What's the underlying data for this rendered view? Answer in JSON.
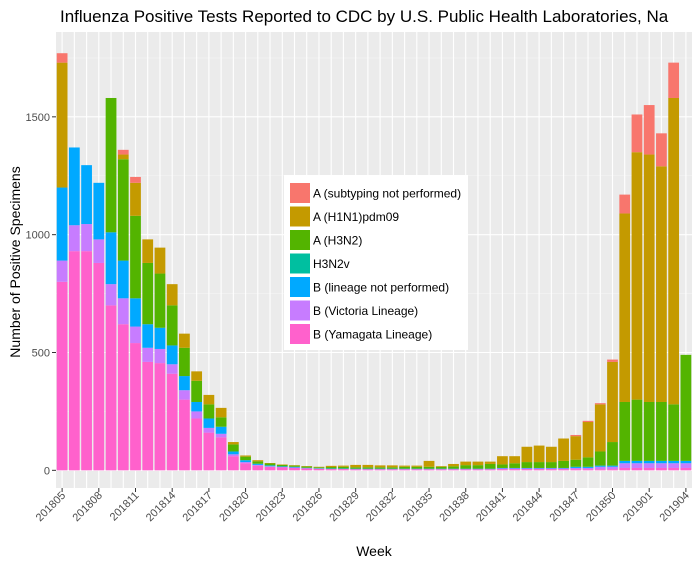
{
  "chart_data": {
    "type": "bar",
    "stacked": true,
    "title": "Influenza Positive Tests Reported to CDC by U.S. Public Health Laboratories, Na",
    "xlabel": "Week",
    "ylabel": "Number of Positive Specimens",
    "ylim": [
      -75,
      1860
    ],
    "y_ticks": [
      0,
      500,
      1000,
      1500
    ],
    "grid": true,
    "legend_position": "center",
    "categories": [
      "201805",
      "201806",
      "201807",
      "201808",
      "201809",
      "201810",
      "201811",
      "201812",
      "201813",
      "201814",
      "201815",
      "201816",
      "201817",
      "201818",
      "201819",
      "201820",
      "201821",
      "201822",
      "201823",
      "201824",
      "201825",
      "201826",
      "201827",
      "201828",
      "201829",
      "201830",
      "201831",
      "201832",
      "201833",
      "201834",
      "201835",
      "201836",
      "201837",
      "201838",
      "201839",
      "201840",
      "201841",
      "201842",
      "201843",
      "201844",
      "201845",
      "201846",
      "201847",
      "201848",
      "201849",
      "201850",
      "201851",
      "201852",
      "201901",
      "201902",
      "201903",
      "201904"
    ],
    "x_tick_labels": [
      "201805",
      "201808",
      "201811",
      "201814",
      "201817",
      "201820",
      "201823",
      "201826",
      "201829",
      "201832",
      "201835",
      "201838",
      "201841",
      "201844",
      "201847",
      "201850",
      "201901",
      "201904"
    ],
    "series": [
      {
        "name": "B (Yamagata Lineage)",
        "color": "#FF61CC",
        "values": [
          800,
          930,
          930,
          880,
          700,
          620,
          540,
          460,
          455,
          410,
          300,
          220,
          160,
          140,
          60,
          30,
          20,
          15,
          12,
          10,
          8,
          6,
          5,
          5,
          4,
          4,
          4,
          4,
          4,
          4,
          4,
          4,
          4,
          4,
          4,
          4,
          5,
          5,
          5,
          5,
          5,
          5,
          5,
          5,
          5,
          5,
          10,
          10,
          10,
          10,
          10,
          10
        ]
      },
      {
        "name": "B (Victoria Lineage)",
        "color": "#C77CFF",
        "values": [
          90,
          110,
          115,
          100,
          90,
          110,
          70,
          60,
          60,
          40,
          40,
          30,
          20,
          15,
          8,
          5,
          3,
          2,
          2,
          2,
          1,
          1,
          1,
          1,
          1,
          1,
          1,
          1,
          1,
          1,
          1,
          1,
          1,
          1,
          1,
          1,
          3,
          3,
          3,
          3,
          3,
          3,
          5,
          5,
          10,
          10,
          20,
          20,
          20,
          20,
          20,
          20
        ]
      },
      {
        "name": "B (lineage not performed)",
        "color": "#00A9FF",
        "values": [
          310,
          330,
          250,
          240,
          220,
          160,
          120,
          100,
          90,
          80,
          60,
          40,
          40,
          30,
          12,
          8,
          5,
          4,
          3,
          3,
          2,
          2,
          2,
          2,
          2,
          2,
          2,
          2,
          2,
          2,
          2,
          2,
          2,
          2,
          2,
          2,
          2,
          2,
          2,
          2,
          2,
          2,
          5,
          5,
          5,
          5,
          10,
          10,
          10,
          10,
          10,
          10
        ]
      },
      {
        "name": "H3N2v",
        "color": "#00BFA0",
        "values": [
          0,
          0,
          0,
          0,
          0,
          0,
          0,
          0,
          0,
          0,
          0,
          0,
          0,
          0,
          0,
          0,
          0,
          0,
          0,
          0,
          0,
          0,
          0,
          0,
          0,
          0,
          0,
          0,
          0,
          0,
          0,
          0,
          0,
          0,
          0,
          0,
          0,
          0,
          0,
          0,
          0,
          0,
          0,
          0,
          0,
          0,
          0,
          0,
          0,
          0,
          0,
          0
        ]
      },
      {
        "name": "A (H3N2)",
        "color": "#53B400",
        "values": [
          0,
          0,
          0,
          0,
          570,
          430,
          350,
          260,
          230,
          170,
          120,
          90,
          60,
          40,
          30,
          15,
          10,
          8,
          6,
          5,
          5,
          4,
          6,
          7,
          6,
          6,
          6,
          6,
          8,
          8,
          8,
          8,
          10,
          15,
          15,
          20,
          15,
          20,
          25,
          25,
          25,
          30,
          30,
          40,
          60,
          100,
          250,
          260,
          250,
          250,
          240,
          450
        ]
      },
      {
        "name": "A (H1N1)pdm09",
        "color": "#C49A00",
        "values": [
          530,
          0,
          0,
          0,
          0,
          20,
          140,
          100,
          110,
          90,
          60,
          40,
          40,
          40,
          10,
          5,
          5,
          2,
          2,
          2,
          2,
          2,
          5,
          5,
          10,
          10,
          8,
          8,
          5,
          5,
          25,
          3,
          10,
          15,
          15,
          10,
          35,
          30,
          65,
          70,
          65,
          95,
          100,
          150,
          200,
          340,
          800,
          1050,
          1050,
          1000,
          1300,
          0
        ]
      },
      {
        "name": "A (subtyping not performed)",
        "color": "#F8766D",
        "values": [
          40,
          0,
          0,
          0,
          0,
          20,
          25,
          0,
          0,
          0,
          0,
          0,
          0,
          0,
          0,
          0,
          0,
          0,
          0,
          0,
          0,
          0,
          0,
          0,
          0,
          0,
          0,
          0,
          0,
          0,
          0,
          0,
          0,
          0,
          0,
          0,
          0,
          0,
          0,
          0,
          0,
          0,
          5,
          5,
          5,
          10,
          80,
          160,
          210,
          140,
          150,
          0
        ]
      }
    ],
    "legend_order": [
      "A (subtyping not performed)",
      "A (H1N1)pdm09",
      "A (H3N2)",
      "H3N2v",
      "B (lineage not performed)",
      "B (Victoria Lineage)",
      "B (Yamagata Lineage)"
    ]
  }
}
